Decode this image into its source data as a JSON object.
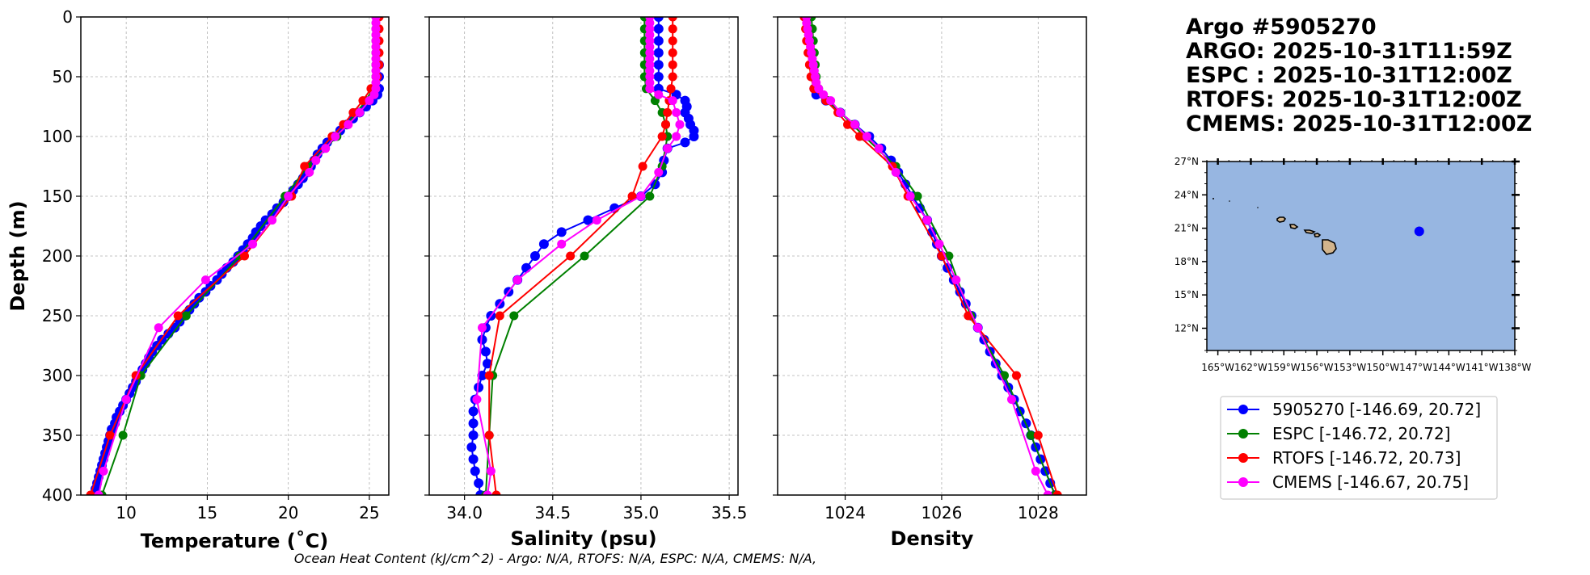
{
  "title_lines": [
    "Argo #5905270",
    "ARGO: 2025-10-31T11:59Z",
    "ESPC : 2025-10-31T12:00Z",
    "RTOFS: 2025-10-31T12:00Z",
    "CMEMS: 2025-10-31T12:00Z"
  ],
  "footer": "Ocean Heat Content (kJ/cm^2) - Argo: N/A,  RTOFS: N/A,  ESPC: N/A,  CMEMS: N/A,",
  "colors": {
    "argo": "#0000ff",
    "espc": "#008000",
    "rtofs": "#ff0000",
    "cmems": "#ff00ff",
    "ocean": "#97b6e1",
    "land": "#d2b48c"
  },
  "legend": [
    {
      "label": "5905270 [-146.69, 20.72]",
      "color": "#0000ff"
    },
    {
      "label": "ESPC [-146.72, 20.72]",
      "color": "#008000"
    },
    {
      "label": "RTOFS [-146.72, 20.73]",
      "color": "#ff0000"
    },
    {
      "label": "CMEMS [-146.67, 20.75]",
      "color": "#ff00ff"
    }
  ],
  "chart_data": [
    {
      "type": "line",
      "xlabel": "Temperature (˚C)",
      "ylabel": "Depth (m)",
      "xlim": [
        7.2,
        26.2
      ],
      "ylim": [
        400,
        0
      ],
      "xticks": [
        10,
        15,
        20,
        25
      ],
      "yticks": [
        0,
        50,
        100,
        150,
        200,
        250,
        300,
        350,
        400
      ],
      "grid": true,
      "series": [
        {
          "name": "5905270",
          "depth": [
            0,
            10,
            20,
            30,
            40,
            50,
            60,
            65,
            70,
            75,
            80,
            85,
            90,
            95,
            100,
            105,
            110,
            115,
            120,
            125,
            130,
            135,
            140,
            145,
            150,
            155,
            160,
            165,
            170,
            175,
            180,
            185,
            190,
            195,
            200,
            205,
            210,
            215,
            220,
            225,
            230,
            235,
            240,
            245,
            250,
            255,
            260,
            265,
            270,
            275,
            280,
            285,
            290,
            295,
            300,
            305,
            310,
            315,
            320,
            325,
            330,
            335,
            340,
            345,
            350,
            355,
            360,
            365,
            370,
            375,
            380,
            385,
            390,
            395,
            400
          ],
          "values": [
            25.5,
            25.5,
            25.5,
            25.5,
            25.6,
            25.6,
            25.6,
            25.5,
            25.2,
            24.8,
            24.4,
            24.0,
            23.6,
            23.2,
            22.8,
            22.4,
            22.1,
            21.8,
            21.6,
            21.4,
            21.2,
            20.9,
            20.6,
            20.3,
            20.0,
            19.7,
            19.3,
            19.0,
            18.6,
            18.3,
            18.0,
            17.8,
            17.5,
            17.2,
            16.9,
            16.6,
            16.2,
            15.9,
            15.6,
            15.2,
            14.9,
            14.5,
            14.2,
            13.9,
            13.6,
            13.3,
            13.0,
            12.6,
            12.2,
            11.9,
            11.6,
            11.4,
            11.2,
            11.0,
            10.8,
            10.6,
            10.4,
            10.2,
            10.0,
            9.8,
            9.6,
            9.4,
            9.3,
            9.1,
            9.0,
            8.9,
            8.8,
            8.7,
            8.6,
            8.5,
            8.4,
            8.3,
            8.2,
            8.1,
            8.0
          ]
        },
        {
          "name": "ESPC",
          "depth": [
            0,
            10,
            20,
            30,
            40,
            50,
            60,
            70,
            80,
            90,
            100,
            125,
            150,
            200,
            250,
            300,
            350,
            400
          ],
          "values": [
            25.4,
            25.4,
            25.4,
            25.4,
            25.4,
            25.4,
            25.2,
            24.8,
            24.2,
            23.6,
            23.0,
            21.2,
            19.8,
            17.0,
            13.7,
            10.9,
            9.8,
            8.5
          ]
        },
        {
          "name": "RTOFS",
          "depth": [
            0,
            10,
            20,
            30,
            40,
            50,
            60,
            70,
            80,
            90,
            100,
            125,
            150,
            200,
            250,
            300,
            350,
            400
          ],
          "values": [
            25.6,
            25.6,
            25.6,
            25.6,
            25.6,
            25.5,
            25.1,
            24.6,
            24.0,
            23.4,
            22.7,
            21.0,
            20.2,
            17.3,
            13.2,
            10.6,
            9.0,
            7.8
          ]
        },
        {
          "name": "CMEMS",
          "depth": [
            0,
            5,
            10,
            15,
            20,
            25,
            30,
            35,
            40,
            45,
            50,
            55,
            60,
            65,
            70,
            80,
            90,
            100,
            110,
            120,
            130,
            150,
            170,
            190,
            220,
            260,
            320,
            380,
            400
          ],
          "values": [
            25.4,
            25.4,
            25.4,
            25.4,
            25.4,
            25.4,
            25.4,
            25.4,
            25.4,
            25.4,
            25.4,
            25.4,
            25.4,
            25.3,
            25.0,
            24.4,
            23.7,
            22.9,
            22.3,
            21.7,
            21.3,
            20.0,
            19.0,
            17.8,
            14.9,
            12.0,
            10.0,
            8.6,
            8.3
          ]
        }
      ]
    },
    {
      "type": "line",
      "xlabel": "Salinity (psu)",
      "ylim": [
        400,
        0
      ],
      "xlim": [
        33.8,
        35.55
      ],
      "xticks": [
        34.0,
        34.5,
        35.0,
        35.5
      ],
      "grid": true,
      "series": [
        {
          "name": "5905270",
          "depth": [
            0,
            10,
            20,
            30,
            40,
            50,
            60,
            65,
            70,
            75,
            80,
            85,
            90,
            95,
            100,
            105,
            110,
            120,
            130,
            140,
            150,
            160,
            170,
            180,
            190,
            200,
            210,
            220,
            230,
            240,
            250,
            260,
            270,
            280,
            290,
            300,
            310,
            320,
            330,
            340,
            350,
            360,
            370,
            380,
            390,
            400
          ],
          "values": [
            35.1,
            35.1,
            35.1,
            35.1,
            35.1,
            35.1,
            35.1,
            35.2,
            35.25,
            35.26,
            35.25,
            35.27,
            35.28,
            35.3,
            35.3,
            35.25,
            35.15,
            35.13,
            35.12,
            35.08,
            35.0,
            34.85,
            34.7,
            34.55,
            34.45,
            34.4,
            34.35,
            34.3,
            34.25,
            34.2,
            34.15,
            34.12,
            34.1,
            34.12,
            34.13,
            34.1,
            34.08,
            34.06,
            34.05,
            34.05,
            34.05,
            34.04,
            34.05,
            34.06,
            34.08,
            34.09
          ]
        },
        {
          "name": "ESPC",
          "depth": [
            0,
            10,
            20,
            30,
            40,
            50,
            60,
            70,
            80,
            90,
            100,
            125,
            150,
            200,
            250,
            300,
            350,
            400
          ],
          "values": [
            35.02,
            35.02,
            35.02,
            35.02,
            35.02,
            35.02,
            35.03,
            35.08,
            35.12,
            35.14,
            35.15,
            35.12,
            35.05,
            34.68,
            34.28,
            34.16,
            34.14,
            34.12
          ]
        },
        {
          "name": "RTOFS",
          "depth": [
            0,
            10,
            20,
            30,
            40,
            50,
            60,
            70,
            80,
            90,
            100,
            125,
            150,
            200,
            250,
            300,
            350,
            400
          ],
          "values": [
            35.18,
            35.18,
            35.18,
            35.18,
            35.18,
            35.18,
            35.17,
            35.16,
            35.15,
            35.14,
            35.12,
            35.01,
            34.95,
            34.6,
            34.2,
            34.14,
            34.14,
            34.18
          ]
        },
        {
          "name": "CMEMS",
          "depth": [
            0,
            5,
            10,
            15,
            20,
            25,
            30,
            35,
            40,
            45,
            50,
            55,
            60,
            65,
            70,
            80,
            90,
            100,
            110,
            130,
            150,
            170,
            190,
            220,
            260,
            320,
            380,
            400
          ],
          "values": [
            35.05,
            35.05,
            35.05,
            35.05,
            35.05,
            35.05,
            35.05,
            35.05,
            35.05,
            35.05,
            35.05,
            35.05,
            35.05,
            35.1,
            35.18,
            35.2,
            35.22,
            35.2,
            35.15,
            35.1,
            35.0,
            34.75,
            34.55,
            34.3,
            34.1,
            34.07,
            34.15,
            34.13
          ]
        }
      ]
    },
    {
      "type": "line",
      "xlabel": "Density",
      "ylim": [
        400,
        0
      ],
      "xlim": [
        1022.6,
        1029.0
      ],
      "xticks": [
        1024,
        1026,
        1028
      ],
      "grid": true,
      "series": [
        {
          "name": "5905270",
          "depth": [
            0,
            10,
            20,
            30,
            40,
            50,
            60,
            65,
            70,
            80,
            90,
            100,
            110,
            120,
            130,
            140,
            150,
            160,
            170,
            180,
            190,
            200,
            210,
            220,
            230,
            240,
            250,
            260,
            270,
            280,
            290,
            300,
            310,
            320,
            330,
            340,
            350,
            360,
            370,
            380,
            390,
            400
          ],
          "values": [
            1023.2,
            1023.22,
            1023.25,
            1023.28,
            1023.3,
            1023.33,
            1023.36,
            1023.4,
            1023.6,
            1023.9,
            1024.2,
            1024.5,
            1024.75,
            1024.95,
            1025.1,
            1025.25,
            1025.4,
            1025.55,
            1025.7,
            1025.8,
            1025.9,
            1026.0,
            1026.12,
            1026.25,
            1026.38,
            1026.5,
            1026.62,
            1026.75,
            1026.88,
            1027.0,
            1027.12,
            1027.25,
            1027.38,
            1027.5,
            1027.62,
            1027.75,
            1027.85,
            1027.95,
            1028.05,
            1028.15,
            1028.25,
            1028.35
          ]
        },
        {
          "name": "ESPC",
          "depth": [
            0,
            10,
            20,
            30,
            40,
            50,
            60,
            70,
            80,
            90,
            100,
            125,
            150,
            200,
            250,
            300,
            350,
            400
          ],
          "values": [
            1023.3,
            1023.32,
            1023.34,
            1023.36,
            1023.38,
            1023.4,
            1023.45,
            1023.65,
            1023.9,
            1024.15,
            1024.4,
            1025.05,
            1025.5,
            1026.15,
            1026.6,
            1027.3,
            1027.85,
            1028.35
          ]
        },
        {
          "name": "RTOFS",
          "depth": [
            0,
            10,
            20,
            30,
            40,
            50,
            60,
            70,
            80,
            90,
            100,
            125,
            150,
            200,
            250,
            300,
            350,
            400
          ],
          "values": [
            1023.15,
            1023.18,
            1023.2,
            1023.23,
            1023.26,
            1023.29,
            1023.35,
            1023.6,
            1023.85,
            1024.05,
            1024.3,
            1024.98,
            1025.3,
            1026.0,
            1026.55,
            1027.55,
            1028.0,
            1028.4
          ]
        },
        {
          "name": "CMEMS",
          "depth": [
            0,
            5,
            10,
            15,
            20,
            25,
            30,
            35,
            40,
            45,
            50,
            55,
            60,
            65,
            70,
            80,
            90,
            100,
            110,
            130,
            150,
            170,
            190,
            220,
            260,
            320,
            380,
            400
          ],
          "values": [
            1023.2,
            1023.2,
            1023.22,
            1023.24,
            1023.26,
            1023.28,
            1023.3,
            1023.32,
            1023.34,
            1023.36,
            1023.38,
            1023.4,
            1023.45,
            1023.55,
            1023.7,
            1023.9,
            1024.2,
            1024.45,
            1024.7,
            1025.05,
            1025.35,
            1025.7,
            1025.95,
            1026.3,
            1026.75,
            1027.45,
            1027.95,
            1028.2
          ]
        }
      ]
    },
    {
      "type": "map",
      "lon_range": [
        -166,
        -138
      ],
      "lat_range": [
        10,
        27
      ],
      "lon_ticks": [
        "165°W",
        "162°W",
        "159°W",
        "156°W",
        "153°W",
        "150°W",
        "147°W",
        "144°W",
        "141°W",
        "138°W"
      ],
      "lat_ticks": [
        "27°N",
        "24°N",
        "21°N",
        "18°N",
        "15°N",
        "12°N"
      ],
      "marker": {
        "lon": -146.69,
        "lat": 20.72
      }
    }
  ]
}
